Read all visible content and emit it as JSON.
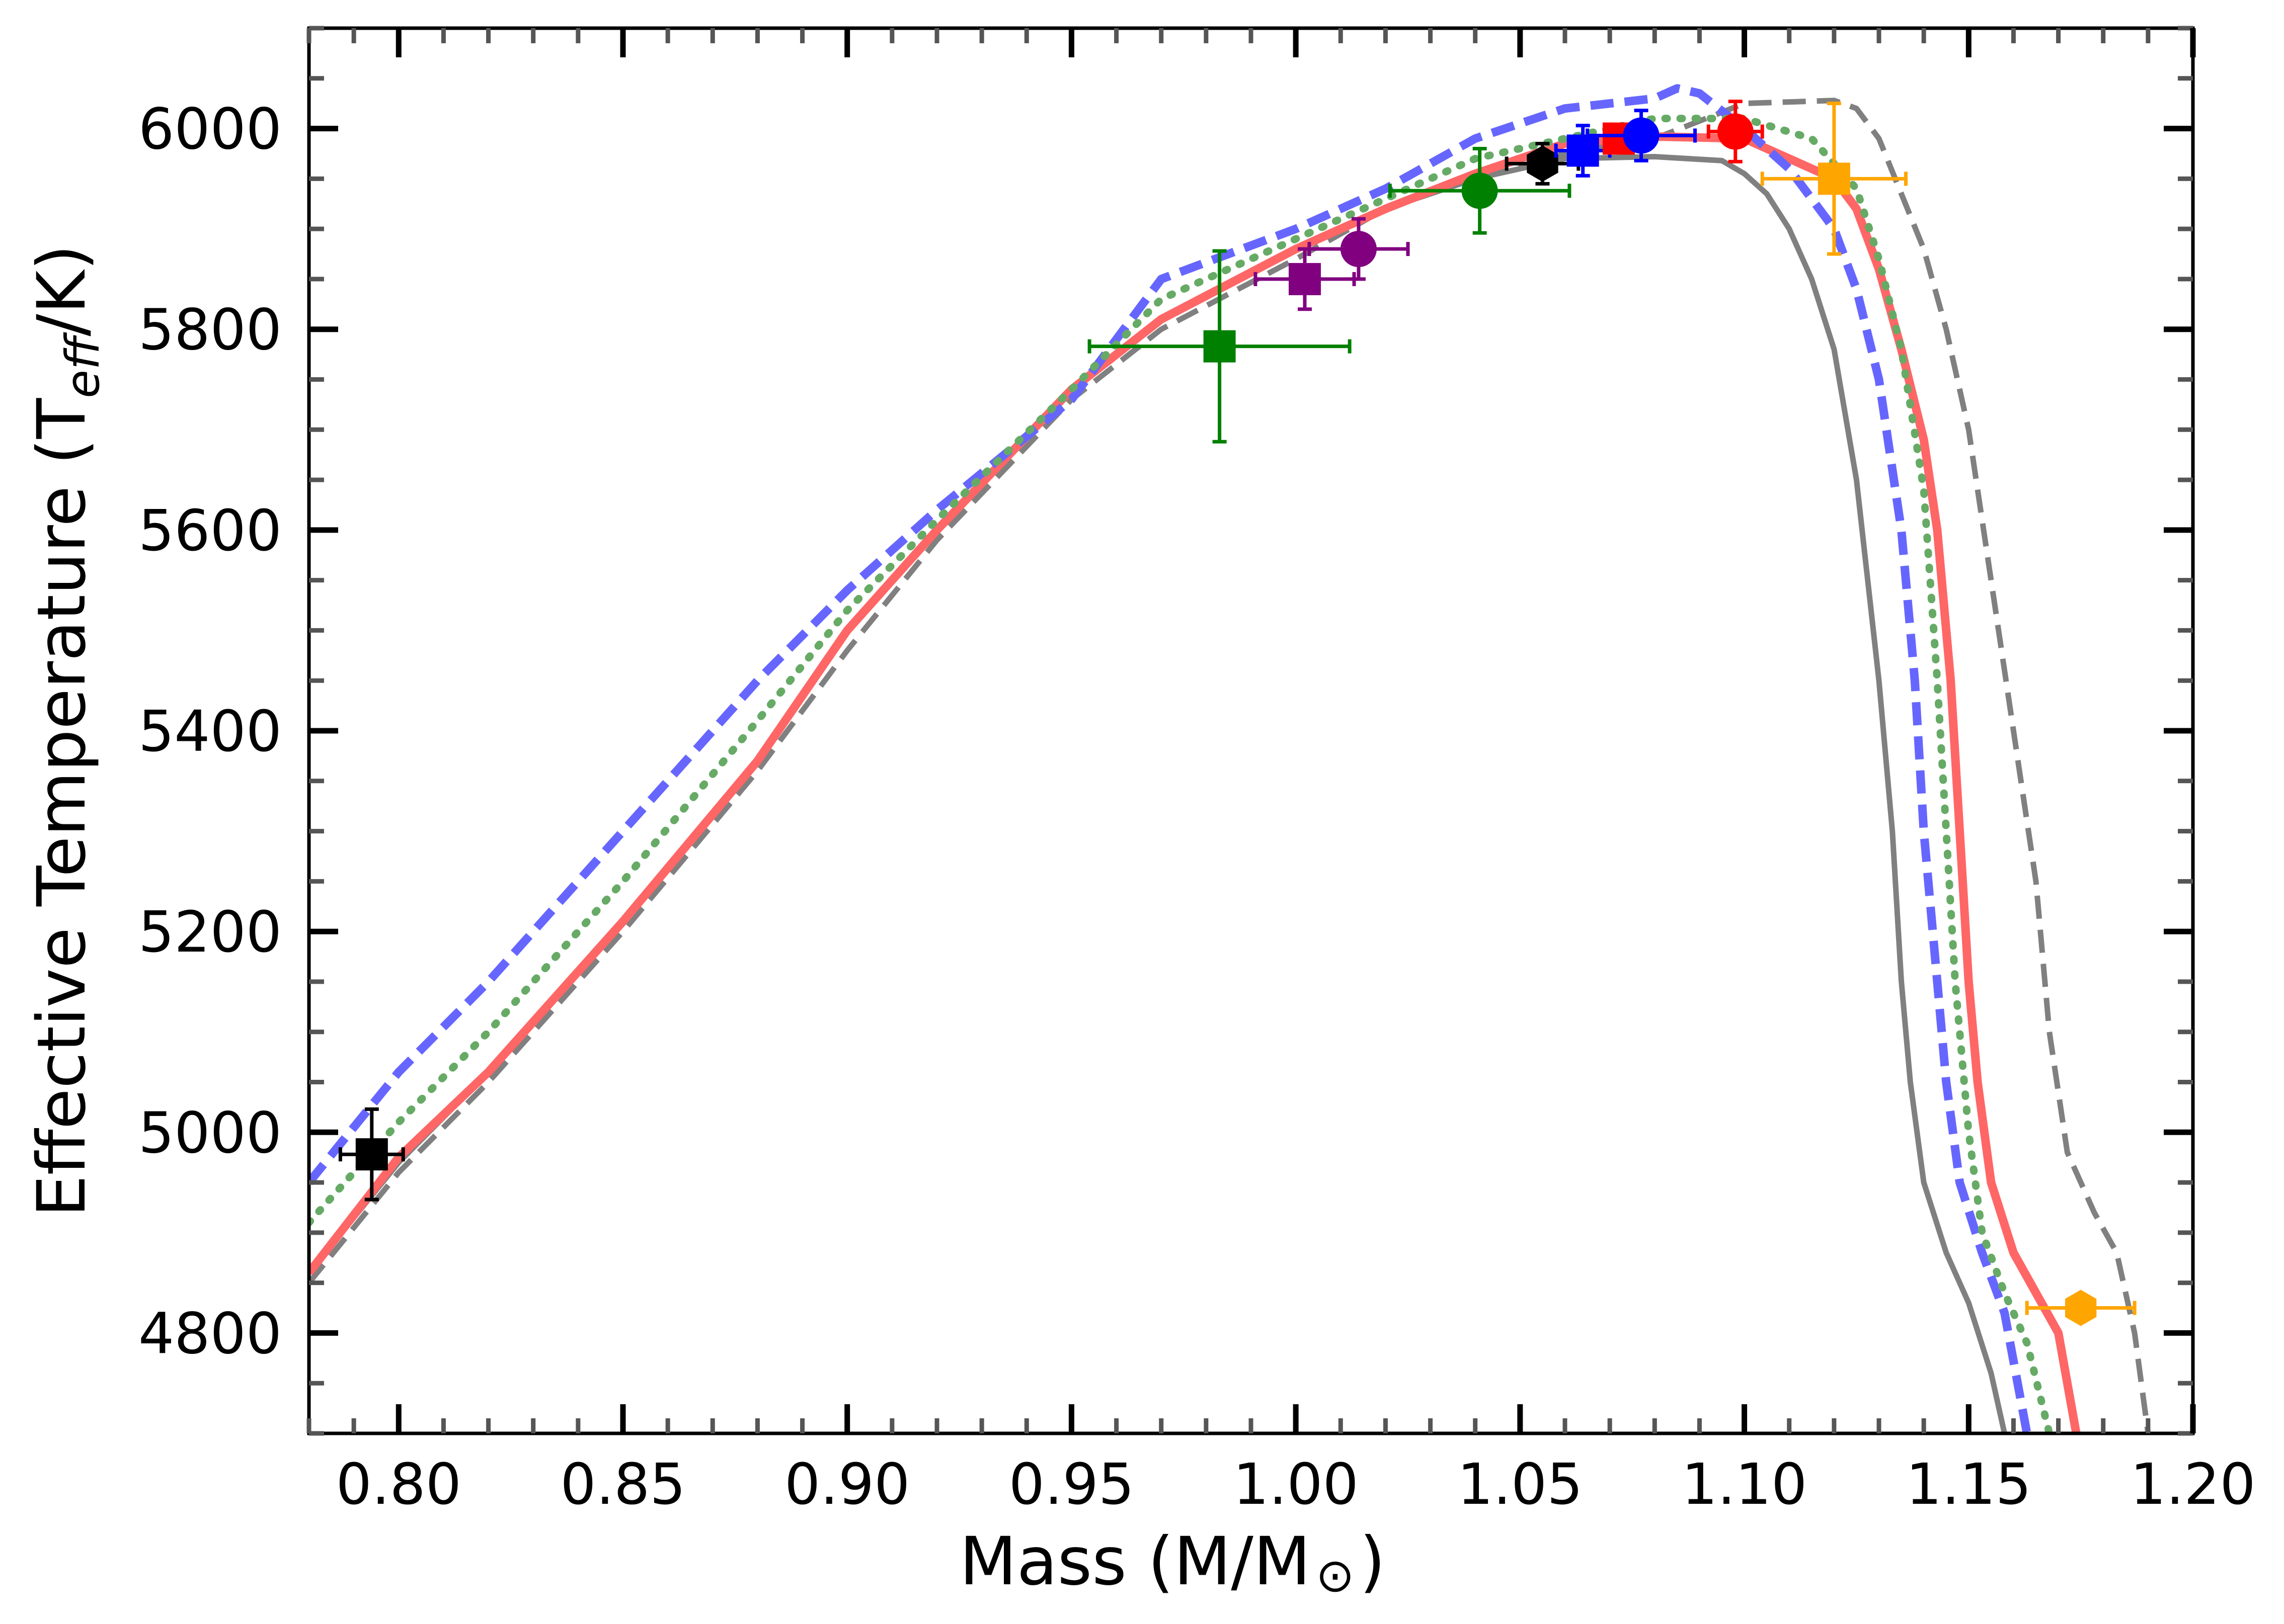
{
  "chart_data": {
    "type": "line",
    "title": "",
    "xlabel": "Mass (M/M",
    "xlabel_sun": "⊙",
    "xlabel_end": ")",
    "ylabel": "Effective Temperature (T",
    "ylabel_sub": "eff",
    "ylabel_end": "/K)",
    "xlim": [
      0.78,
      1.2
    ],
    "ylim": [
      4700,
      6100
    ],
    "xticks": [
      0.8,
      0.85,
      0.9,
      0.95,
      1.0,
      1.05,
      1.1,
      1.15,
      1.2
    ],
    "xtick_labels": [
      "0.80",
      "0.85",
      "0.90",
      "0.95",
      "1.00",
      "1.05",
      "1.10",
      "1.15",
      "1.20"
    ],
    "yticks": [
      4800,
      5000,
      5200,
      5400,
      5600,
      5800,
      6000
    ],
    "ytick_labels": [
      "4800",
      "5000",
      "5200",
      "5400",
      "5600",
      "5800",
      "6000"
    ],
    "x_minor_step": 0.01,
    "y_minor_step": 50,
    "grid": false,
    "series": [
      {
        "name": "gray solid",
        "color": "#808080",
        "style": "solid",
        "width": 11,
        "opacity": 1.0,
        "x": [
          0.78,
          0.8,
          0.82,
          0.85,
          0.88,
          0.9,
          0.92,
          0.95,
          0.97,
          1.0,
          1.02,
          1.04,
          1.06,
          1.08,
          1.095,
          1.1,
          1.105,
          1.11,
          1.115,
          1.12,
          1.125,
          1.13,
          1.133,
          1.135,
          1.137,
          1.14,
          1.145,
          1.15,
          1.155,
          1.158
        ],
        "y": [
          4860,
          4970,
          5060,
          5210,
          5370,
          5500,
          5600,
          5740,
          5810,
          5880,
          5920,
          5950,
          5970,
          5972,
          5968,
          5955,
          5935,
          5900,
          5850,
          5780,
          5650,
          5450,
          5300,
          5150,
          5050,
          4950,
          4880,
          4830,
          4760,
          4700
        ]
      },
      {
        "name": "gray dashed",
        "color": "#808080",
        "style": "dashed",
        "width": 11,
        "opacity": 1.0,
        "x": [
          0.78,
          0.8,
          0.82,
          0.85,
          0.88,
          0.9,
          0.92,
          0.95,
          0.97,
          1.0,
          1.02,
          1.04,
          1.06,
          1.08,
          1.1,
          1.12,
          1.125,
          1.13,
          1.14,
          1.145,
          1.15,
          1.155,
          1.16,
          1.165,
          1.168,
          1.172,
          1.178,
          1.183,
          1.187,
          1.19
        ],
        "y": [
          4850,
          4960,
          5050,
          5200,
          5360,
          5480,
          5590,
          5730,
          5800,
          5870,
          5920,
          5950,
          5975,
          5990,
          6025,
          6028,
          6020,
          5990,
          5880,
          5800,
          5700,
          5550,
          5400,
          5250,
          5100,
          4980,
          4920,
          4880,
          4800,
          4700
        ]
      },
      {
        "name": "red solid",
        "color": "#ff6666",
        "style": "solid",
        "width": 17,
        "opacity": 1.0,
        "x": [
          0.78,
          0.8,
          0.82,
          0.85,
          0.88,
          0.9,
          0.92,
          0.95,
          0.97,
          1.0,
          1.02,
          1.04,
          1.06,
          1.08,
          1.1,
          1.12,
          1.125,
          1.13,
          1.135,
          1.14,
          1.143,
          1.146,
          1.148,
          1.15,
          1.152,
          1.155,
          1.16,
          1.165,
          1.17,
          1.174
        ],
        "y": [
          4860,
          4975,
          5060,
          5210,
          5370,
          5500,
          5600,
          5740,
          5810,
          5880,
          5920,
          5955,
          5985,
          5992,
          5990,
          5950,
          5920,
          5860,
          5780,
          5690,
          5600,
          5450,
          5300,
          5150,
          5050,
          4950,
          4880,
          4840,
          4800,
          4700
        ]
      },
      {
        "name": "blue dashed",
        "color": "#6666ff",
        "style": "dashed",
        "width": 17,
        "opacity": 1.0,
        "x": [
          0.78,
          0.8,
          0.82,
          0.85,
          0.88,
          0.9,
          0.92,
          0.95,
          0.97,
          1.0,
          1.02,
          1.04,
          1.06,
          1.08,
          1.085,
          1.09,
          1.1,
          1.11,
          1.12,
          1.125,
          1.13,
          1.135,
          1.138,
          1.14,
          1.143,
          1.145,
          1.148,
          1.153,
          1.158,
          1.163
        ],
        "y": [
          4950,
          5060,
          5150,
          5300,
          5450,
          5540,
          5620,
          5730,
          5850,
          5900,
          5940,
          5990,
          6020,
          6030,
          6040,
          6035,
          6000,
          5960,
          5900,
          5840,
          5750,
          5600,
          5450,
          5300,
          5150,
          5050,
          4950,
          4880,
          4820,
          4700
        ]
      },
      {
        "name": "green dotted",
        "color": "#66aa66",
        "style": "dotted",
        "width": 15,
        "opacity": 1.0,
        "x": [
          0.78,
          0.8,
          0.82,
          0.85,
          0.88,
          0.9,
          0.92,
          0.95,
          0.97,
          1.0,
          1.02,
          1.04,
          1.06,
          1.08,
          1.1,
          1.115,
          1.125,
          1.13,
          1.135,
          1.14,
          1.143,
          1.145,
          1.147,
          1.15,
          1.153,
          1.158,
          1.163,
          1.168
        ],
        "y": [
          4910,
          5010,
          5100,
          5250,
          5410,
          5520,
          5610,
          5740,
          5830,
          5890,
          5930,
          5970,
          5990,
          6010,
          6010,
          5990,
          5940,
          5870,
          5780,
          5640,
          5450,
          5300,
          5150,
          5000,
          4900,
          4840,
          4790,
          4700
        ]
      }
    ],
    "points": [
      {
        "name": "black square",
        "marker": "square",
        "color": "#000000",
        "x": 0.794,
        "y": 4978,
        "xerr": 0.007,
        "yerr": 45
      },
      {
        "name": "green square",
        "marker": "square",
        "color": "#008000",
        "x": 0.983,
        "y": 5783,
        "xerr": 0.029,
        "yerr": 95
      },
      {
        "name": "purple square",
        "marker": "square",
        "color": "#800080",
        "x": 1.002,
        "y": 5850,
        "xerr": 0.011,
        "yerr": 30
      },
      {
        "name": "purple circle",
        "marker": "circle",
        "color": "#800080",
        "x": 1.014,
        "y": 5880,
        "xerr": 0.011,
        "yerr": 30
      },
      {
        "name": "green circle",
        "marker": "circle",
        "color": "#008000",
        "x": 1.041,
        "y": 5938,
        "xerr": 0.02,
        "yerr": 42
      },
      {
        "name": "black hexagon",
        "marker": "hexagon",
        "color": "#000000",
        "x": 1.055,
        "y": 5965,
        "xerr": 0.008,
        "yerr": 20
      },
      {
        "name": "blue square",
        "marker": "square",
        "color": "#0000ff",
        "x": 1.064,
        "y": 5978,
        "xerr": 0.006,
        "yerr": 25
      },
      {
        "name": "red square",
        "marker": "square",
        "color": "#ff0000",
        "x": 1.072,
        "y": 5990,
        "xerr": 0.0,
        "yerr": 0
      },
      {
        "name": "blue circle",
        "marker": "circle",
        "color": "#0000ff",
        "x": 1.077,
        "y": 5993,
        "xerr": 0.012,
        "yerr": 25
      },
      {
        "name": "red circle",
        "marker": "circle",
        "color": "#ff0000",
        "x": 1.098,
        "y": 5997,
        "xerr": 0.006,
        "yerr": 30
      },
      {
        "name": "orange square",
        "marker": "square",
        "color": "#ffa500",
        "x": 1.12,
        "y": 5950,
        "xerr": 0.016,
        "yerr": 75
      },
      {
        "name": "orange hexagon",
        "marker": "hexagon",
        "color": "#ffa500",
        "x": 1.175,
        "y": 4825,
        "xerr": 0.012,
        "yerr": 0
      }
    ]
  }
}
